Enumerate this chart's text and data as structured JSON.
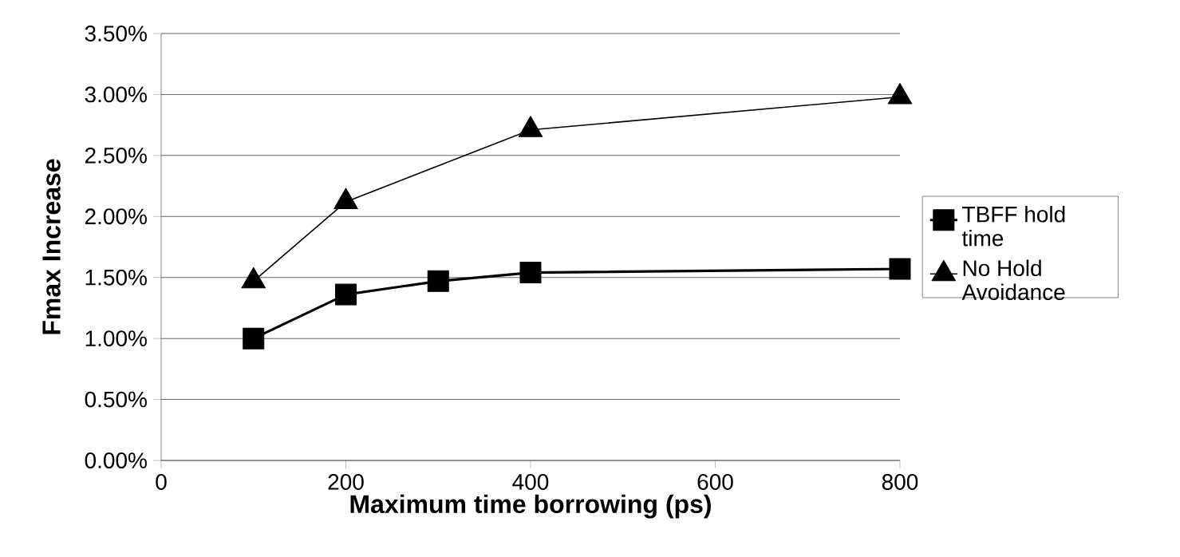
{
  "chart_data": {
    "type": "line",
    "xlabel": "Maximum time borrowing (ps)",
    "ylabel": "Fmax Increase",
    "series": [
      {
        "name": "TBFF hold time",
        "color": "#000000",
        "marker": "square",
        "x": [
          100,
          200,
          300,
          400,
          800
        ],
        "values": [
          1.0,
          1.36,
          1.47,
          1.54,
          1.57
        ]
      },
      {
        "name": "No Hold Avoidance",
        "color": "#000000",
        "marker": "triangle",
        "x": [
          100,
          200,
          400,
          800
        ],
        "values": [
          1.47,
          2.12,
          2.71,
          2.98
        ]
      }
    ],
    "xlim": [
      0,
      800
    ],
    "xticks": [
      0,
      200,
      400,
      600,
      800
    ],
    "ylim": [
      0,
      3.5
    ],
    "yticks": [
      {
        "value": 0,
        "label": "0.00%"
      },
      {
        "value": 0.5,
        "label": "0.50%"
      },
      {
        "value": 1,
        "label": "1.00%"
      },
      {
        "value": 1.5,
        "label": "1.50%"
      },
      {
        "value": 2,
        "label": "2.00%"
      },
      {
        "value": 2.5,
        "label": "2.50%"
      },
      {
        "value": 3,
        "label": "3.00%"
      },
      {
        "value": 3.5,
        "label": "3.50%"
      }
    ],
    "grid": "y",
    "legend": "right",
    "line_style": "solid"
  }
}
